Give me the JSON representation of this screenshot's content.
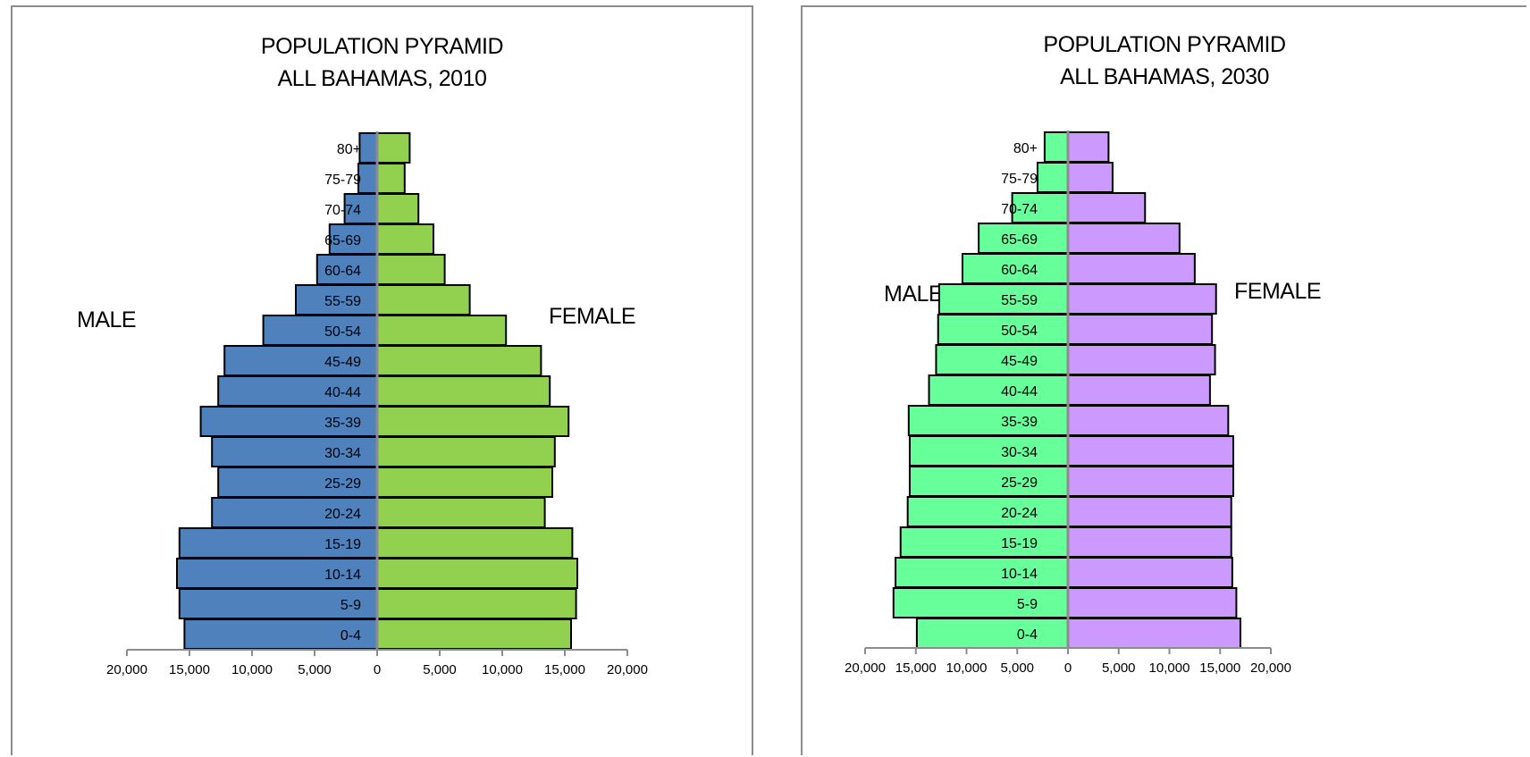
{
  "chart_data": [
    {
      "type": "bar",
      "orientation": "horizontal-pyramid",
      "title": "POPULATION PYRAMID",
      "subtitle": "ALL BAHAMAS, 2010",
      "left_label": "MALE",
      "right_label": "FEMALE",
      "categories": [
        "0-4",
        "5-9",
        "10-14",
        "15-19",
        "20-24",
        "25-29",
        "30-34",
        "35-39",
        "40-44",
        "45-49",
        "50-54",
        "55-59",
        "60-64",
        "65-69",
        "70-74",
        "75-79",
        "80+"
      ],
      "series": [
        {
          "name": "MALE",
          "color": "#4f81bd",
          "values": [
            15400,
            15800,
            16000,
            15800,
            13200,
            12700,
            13200,
            14100,
            12700,
            12200,
            9100,
            6500,
            4800,
            3800,
            2600,
            1500,
            1400
          ]
        },
        {
          "name": "FEMALE",
          "color": "#92d050",
          "values": [
            15500,
            15900,
            16000,
            15600,
            13400,
            14000,
            14200,
            15300,
            13800,
            13100,
            10300,
            7400,
            5400,
            4500,
            3300,
            2200,
            2600
          ]
        }
      ],
      "xlim": [
        -20000,
        20000
      ],
      "x_ticks": [
        {
          "value": -20000,
          "label": "20,000"
        },
        {
          "value": -15000,
          "label": "15,000"
        },
        {
          "value": -10000,
          "label": "10,000"
        },
        {
          "value": -5000,
          "label": "5,000"
        },
        {
          "value": 0,
          "label": "0"
        },
        {
          "value": 5000,
          "label": "5,000"
        },
        {
          "value": 10000,
          "label": "10,000"
        },
        {
          "value": 15000,
          "label": "15,000"
        },
        {
          "value": 20000,
          "label": "20,000"
        }
      ],
      "grid": false,
      "legend": "none"
    },
    {
      "type": "bar",
      "orientation": "horizontal-pyramid",
      "title": "POPULATION PYRAMID",
      "subtitle": "ALL BAHAMAS, 2030",
      "left_label": "MALE",
      "right_label": "FEMALE",
      "categories": [
        "0-4",
        "5-9",
        "10-14",
        "15-19",
        "20-24",
        "25-29",
        "30-34",
        "35-39",
        "40-44",
        "45-49",
        "50-54",
        "55-59",
        "60-64",
        "65-69",
        "70-74",
        "75-79",
        "80+"
      ],
      "series": [
        {
          "name": "MALE",
          "color": "#66ff99",
          "values": [
            14900,
            17200,
            17000,
            16500,
            15800,
            15600,
            15600,
            15700,
            13700,
            13000,
            12800,
            12700,
            10400,
            8800,
            5500,
            3000,
            2300
          ]
        },
        {
          "name": "FEMALE",
          "color": "#cc99ff",
          "values": [
            17000,
            16600,
            16200,
            16100,
            16100,
            16300,
            16300,
            15800,
            14000,
            14500,
            14200,
            14600,
            12500,
            11000,
            7600,
            4400,
            4000
          ]
        }
      ],
      "xlim": [
        -20000,
        20000
      ],
      "x_ticks": [
        {
          "value": -20000,
          "label": "20,000"
        },
        {
          "value": -15000,
          "label": "15,000"
        },
        {
          "value": -10000,
          "label": "10,000"
        },
        {
          "value": -5000,
          "label": "5,000"
        },
        {
          "value": 0,
          "label": "0"
        },
        {
          "value": 5000,
          "label": "5,000"
        },
        {
          "value": 10000,
          "label": "10,000"
        },
        {
          "value": 15000,
          "label": "15,000"
        },
        {
          "value": 20000,
          "label": "20,000"
        }
      ],
      "grid": false,
      "legend": "none"
    }
  ]
}
